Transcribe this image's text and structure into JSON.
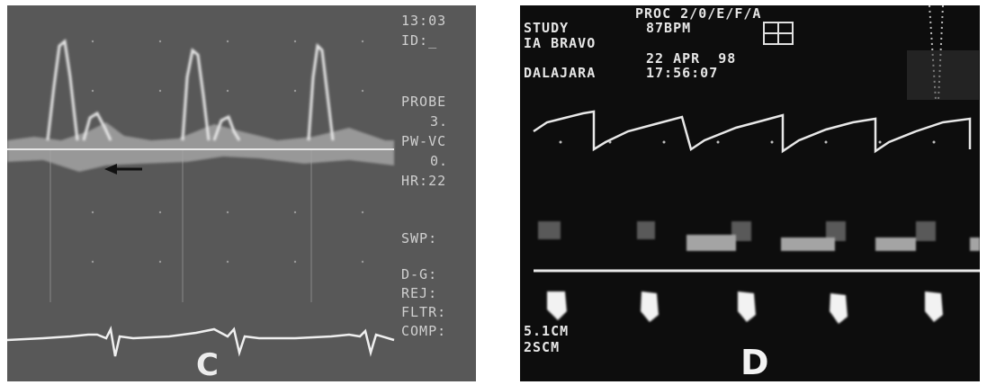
{
  "panel_c": {
    "side_labels": [
      "13:03",
      "ID:_",
      "PROBE",
      "3.",
      "PW-VC",
      "0.",
      "HR:22",
      "SWP:",
      "D-G:",
      "REJ:",
      "FLTR:",
      "COMP:"
    ],
    "tag": "C"
  },
  "panel_d": {
    "header": [
      "PROC 2/0/E/F/A",
      "STUDY",
      "87BPM",
      "IA BRAVO",
      "22 APR  98",
      "DALAJARA",
      "17:56:07"
    ],
    "depth_labels": [
      "5.1CM",
      "2SCM"
    ],
    "tag": "D"
  }
}
